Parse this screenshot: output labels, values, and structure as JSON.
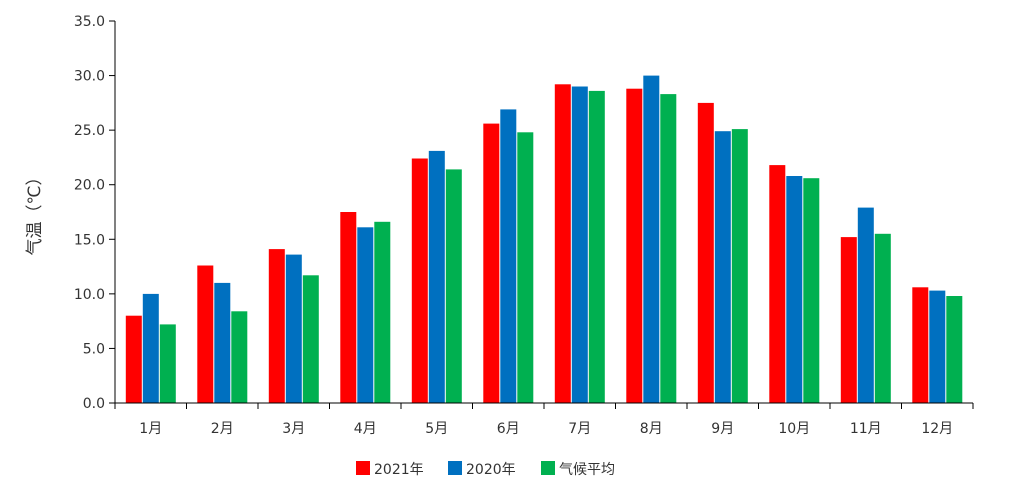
{
  "chart_data": {
    "type": "bar",
    "title": "",
    "xlabel": "",
    "ylabel": "气温（℃）",
    "ylim": [
      0,
      35
    ],
    "y_ticks": [
      "0.0",
      "5.0",
      "10.0",
      "15.0",
      "20.0",
      "25.0",
      "30.0",
      "35.0"
    ],
    "grid": false,
    "legend_position": "bottom-center",
    "categories": [
      "1月",
      "2月",
      "3月",
      "4月",
      "5月",
      "6月",
      "7月",
      "8月",
      "9月",
      "10月",
      "11月",
      "12月"
    ],
    "series": [
      {
        "name": "2021年",
        "color": "#ff0000",
        "values": [
          8.0,
          12.6,
          14.1,
          17.5,
          22.4,
          25.6,
          29.2,
          28.8,
          27.5,
          21.8,
          15.2,
          10.6
        ]
      },
      {
        "name": "2020年",
        "color": "#0070c0",
        "values": [
          10.0,
          11.0,
          13.6,
          16.1,
          23.1,
          26.9,
          29.0,
          30.0,
          24.9,
          20.8,
          17.9,
          10.3
        ]
      },
      {
        "name": "气候平均",
        "color": "#00b050",
        "values": [
          7.2,
          8.4,
          11.7,
          16.6,
          21.4,
          24.8,
          28.6,
          28.3,
          25.1,
          20.6,
          15.5,
          9.8
        ]
      }
    ]
  }
}
